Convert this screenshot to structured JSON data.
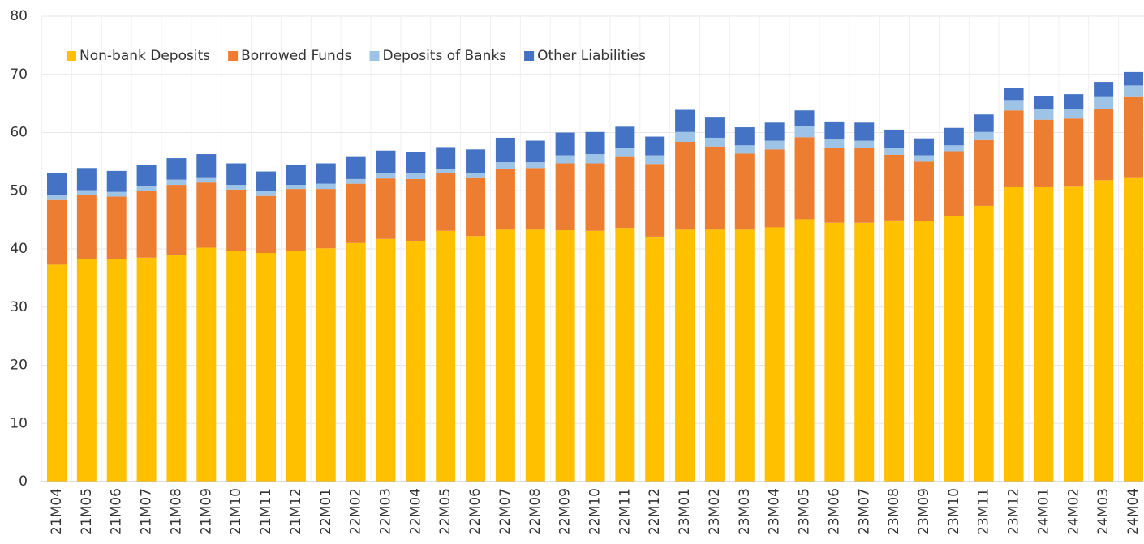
{
  "chart_data": {
    "type": "bar",
    "stacked": true,
    "categories": [
      "21M04",
      "21M05",
      "21M06",
      "21M07",
      "21M08",
      "21M09",
      "21M10",
      "21M11",
      "21M12",
      "22M01",
      "22M02",
      "22M03",
      "22M04",
      "22M05",
      "22M06",
      "22M07",
      "22M08",
      "22M09",
      "22M10",
      "22M11",
      "22M12",
      "23M01",
      "23M02",
      "23M03",
      "23M04",
      "23M05",
      "23M06",
      "23M07",
      "23M08",
      "23M09",
      "23M10",
      "23M11",
      "23M12",
      "24M01",
      "24M02",
      "24M03",
      "24M04"
    ],
    "series": [
      {
        "name": "Non-bank Deposits",
        "color": "#ffc000",
        "values": [
          37.3,
          38.3,
          38.2,
          38.5,
          39.0,
          40.2,
          39.6,
          39.3,
          39.7,
          40.1,
          41.0,
          41.7,
          41.4,
          43.1,
          42.2,
          43.3,
          43.3,
          43.2,
          43.1,
          43.6,
          42.1,
          43.3,
          43.3,
          43.3,
          43.7,
          45.1,
          44.5,
          44.5,
          44.9,
          44.8,
          45.7,
          47.4,
          50.6,
          50.6,
          50.7,
          51.8,
          52.3
        ]
      },
      {
        "name": "Borrowed Funds",
        "color": "#ed7d31",
        "values": [
          11.1,
          10.9,
          10.8,
          11.5,
          12.0,
          11.2,
          10.6,
          9.8,
          10.6,
          10.2,
          10.2,
          10.4,
          10.6,
          10.0,
          10.1,
          10.5,
          10.6,
          11.5,
          11.6,
          12.2,
          12.5,
          15.1,
          14.3,
          13.1,
          13.4,
          14.1,
          12.9,
          12.8,
          11.3,
          10.2,
          11.1,
          11.3,
          13.2,
          11.6,
          11.7,
          12.2,
          13.8
        ]
      },
      {
        "name": "Deposits of Banks",
        "color": "#9dc3e6",
        "values": [
          0.8,
          0.9,
          0.8,
          0.8,
          0.9,
          0.9,
          0.8,
          0.8,
          0.7,
          0.9,
          0.8,
          1.0,
          1.0,
          0.7,
          0.8,
          1.1,
          1.0,
          1.4,
          1.6,
          1.6,
          1.5,
          1.7,
          1.5,
          1.4,
          1.5,
          1.9,
          1.4,
          1.3,
          1.2,
          1.1,
          1.0,
          1.4,
          1.8,
          1.8,
          1.7,
          2.1,
          2.0
        ]
      },
      {
        "name": "Other Liabilities",
        "color": "#4472c4",
        "values": [
          3.9,
          3.8,
          3.6,
          3.6,
          3.7,
          4.0,
          3.7,
          3.4,
          3.5,
          3.5,
          3.8,
          3.8,
          3.7,
          3.7,
          4.0,
          4.2,
          3.7,
          3.9,
          3.8,
          3.6,
          3.2,
          3.8,
          3.6,
          3.1,
          3.1,
          2.7,
          3.1,
          3.1,
          3.1,
          2.9,
          3.0,
          3.0,
          2.1,
          2.2,
          2.5,
          2.6,
          2.3
        ]
      }
    ],
    "ylim": [
      0,
      80
    ],
    "yticks": [
      0,
      10,
      20,
      30,
      40,
      50,
      60,
      70,
      80
    ],
    "grid": true,
    "legend": "top-left"
  }
}
